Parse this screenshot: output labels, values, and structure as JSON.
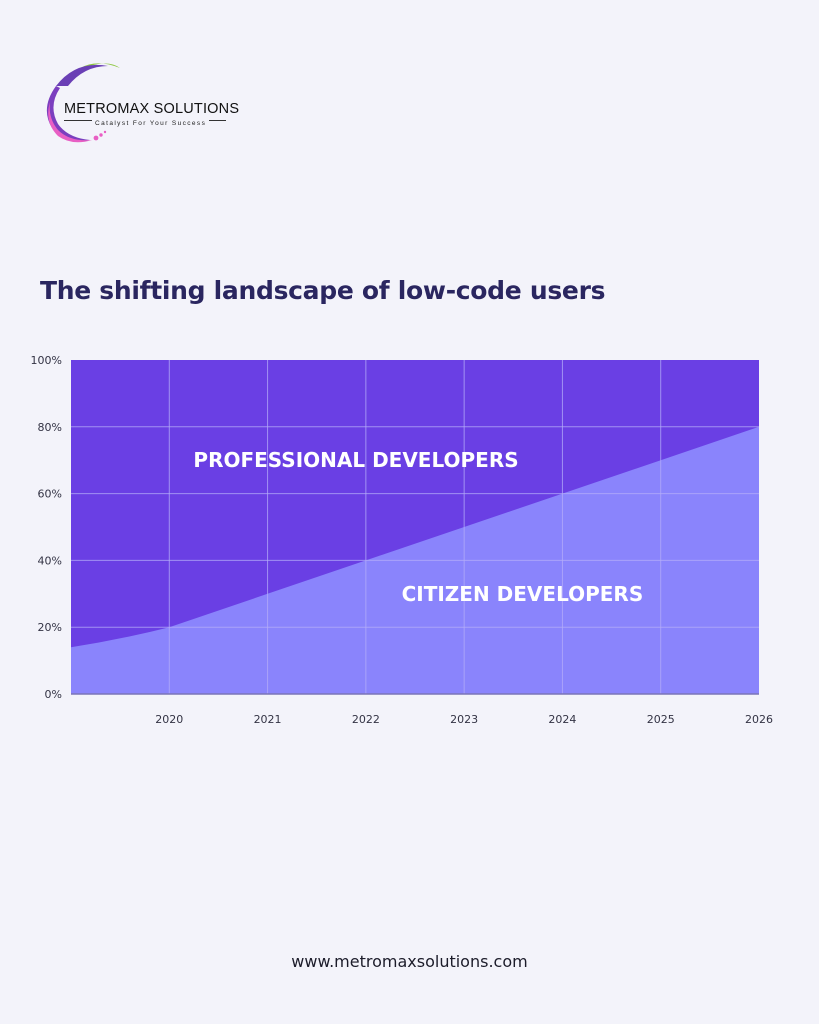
{
  "brand": {
    "name": "METROMAX SOLUTIONS",
    "tagline": "Catalyst For Your Success"
  },
  "chart_data": {
    "type": "area",
    "title": "The shifting landscape of low-code users",
    "x": [
      2019,
      2020,
      2021,
      2022,
      2023,
      2024,
      2025,
      2026
    ],
    "x_ticks": [
      "2020",
      "2021",
      "2022",
      "2023",
      "2024",
      "2025",
      "2026"
    ],
    "y_ticks": [
      "0%",
      "20%",
      "40%",
      "60%",
      "80%",
      "100%"
    ],
    "ylim": [
      0,
      100
    ],
    "xlim": [
      2019,
      2026
    ],
    "grid": true,
    "stacked_percent": true,
    "series": [
      {
        "name": "CITIZEN DEVELOPERS",
        "values": [
          14,
          20,
          30,
          40,
          50,
          60,
          70,
          80
        ],
        "color": "#8a84fc",
        "label_position": {
          "x": 2024,
          "y": 30
        }
      },
      {
        "name": "PROFESSIONAL DEVELOPERS",
        "values": [
          86,
          80,
          70,
          60,
          50,
          40,
          30,
          20
        ],
        "color": "#6a3fe4",
        "label_position": {
          "x": 2021.9,
          "y": 70
        }
      }
    ]
  },
  "footer": {
    "url": "www.metromaxsolutions.com"
  },
  "colors": {
    "background": "#f3f3fa",
    "title": "#2a2660",
    "axis_text": "#333344",
    "grid": "#b4aef8"
  }
}
